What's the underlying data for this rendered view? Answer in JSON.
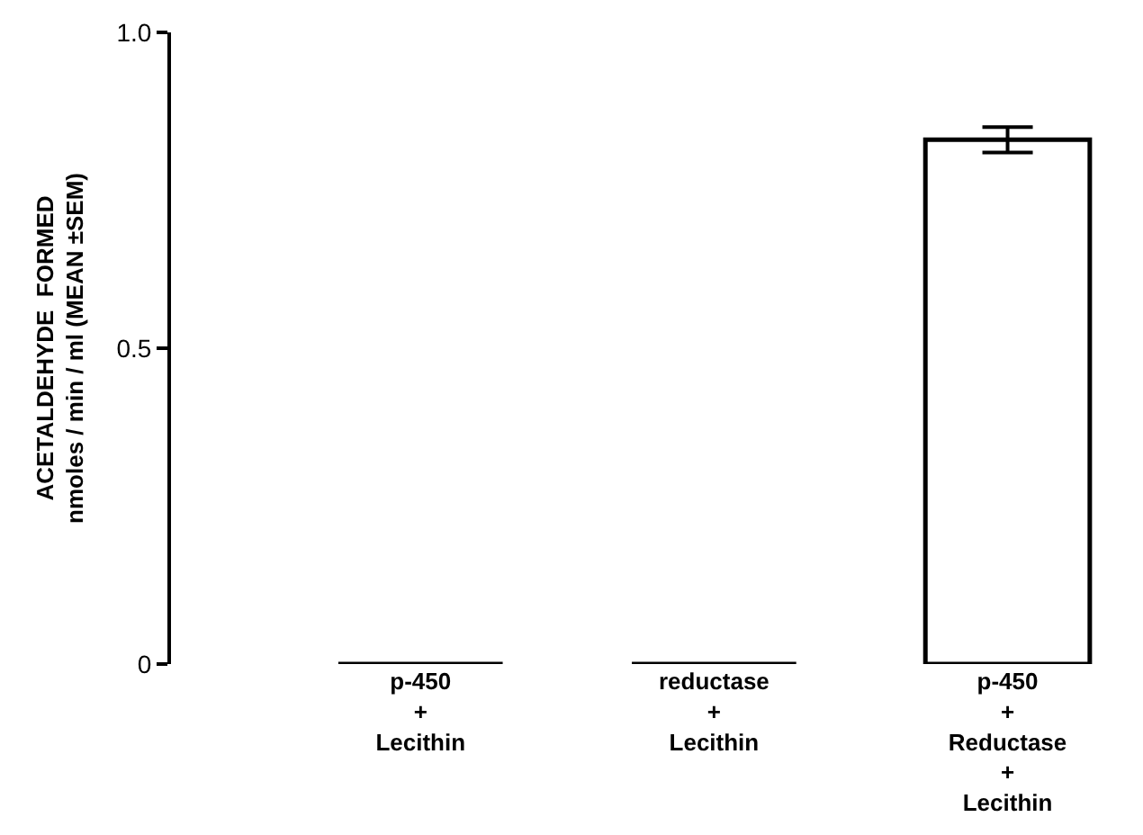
{
  "chart_data": {
    "type": "bar",
    "ylabel": "ACETALDEHYDE  FORMED\nnmoles / min / ml (MEAN ±SEM)",
    "categories": [
      "p-450\n+\nLecithin",
      "reductase\n+\nLecithin",
      "p-450\n+\nReductase\n+\nLecithin"
    ],
    "values": [
      0,
      0,
      0.83
    ],
    "errors": [
      null,
      null,
      0.02
    ],
    "colors": [
      "#000000",
      "#000000",
      "#ffffff"
    ],
    "ylim": [
      0,
      1.0
    ],
    "yticks": [
      {
        "value": 0,
        "label": "0"
      },
      {
        "value": 0.5,
        "label": "0.5"
      },
      {
        "value": 1.0,
        "label": "1.0"
      }
    ],
    "grid": false
  }
}
